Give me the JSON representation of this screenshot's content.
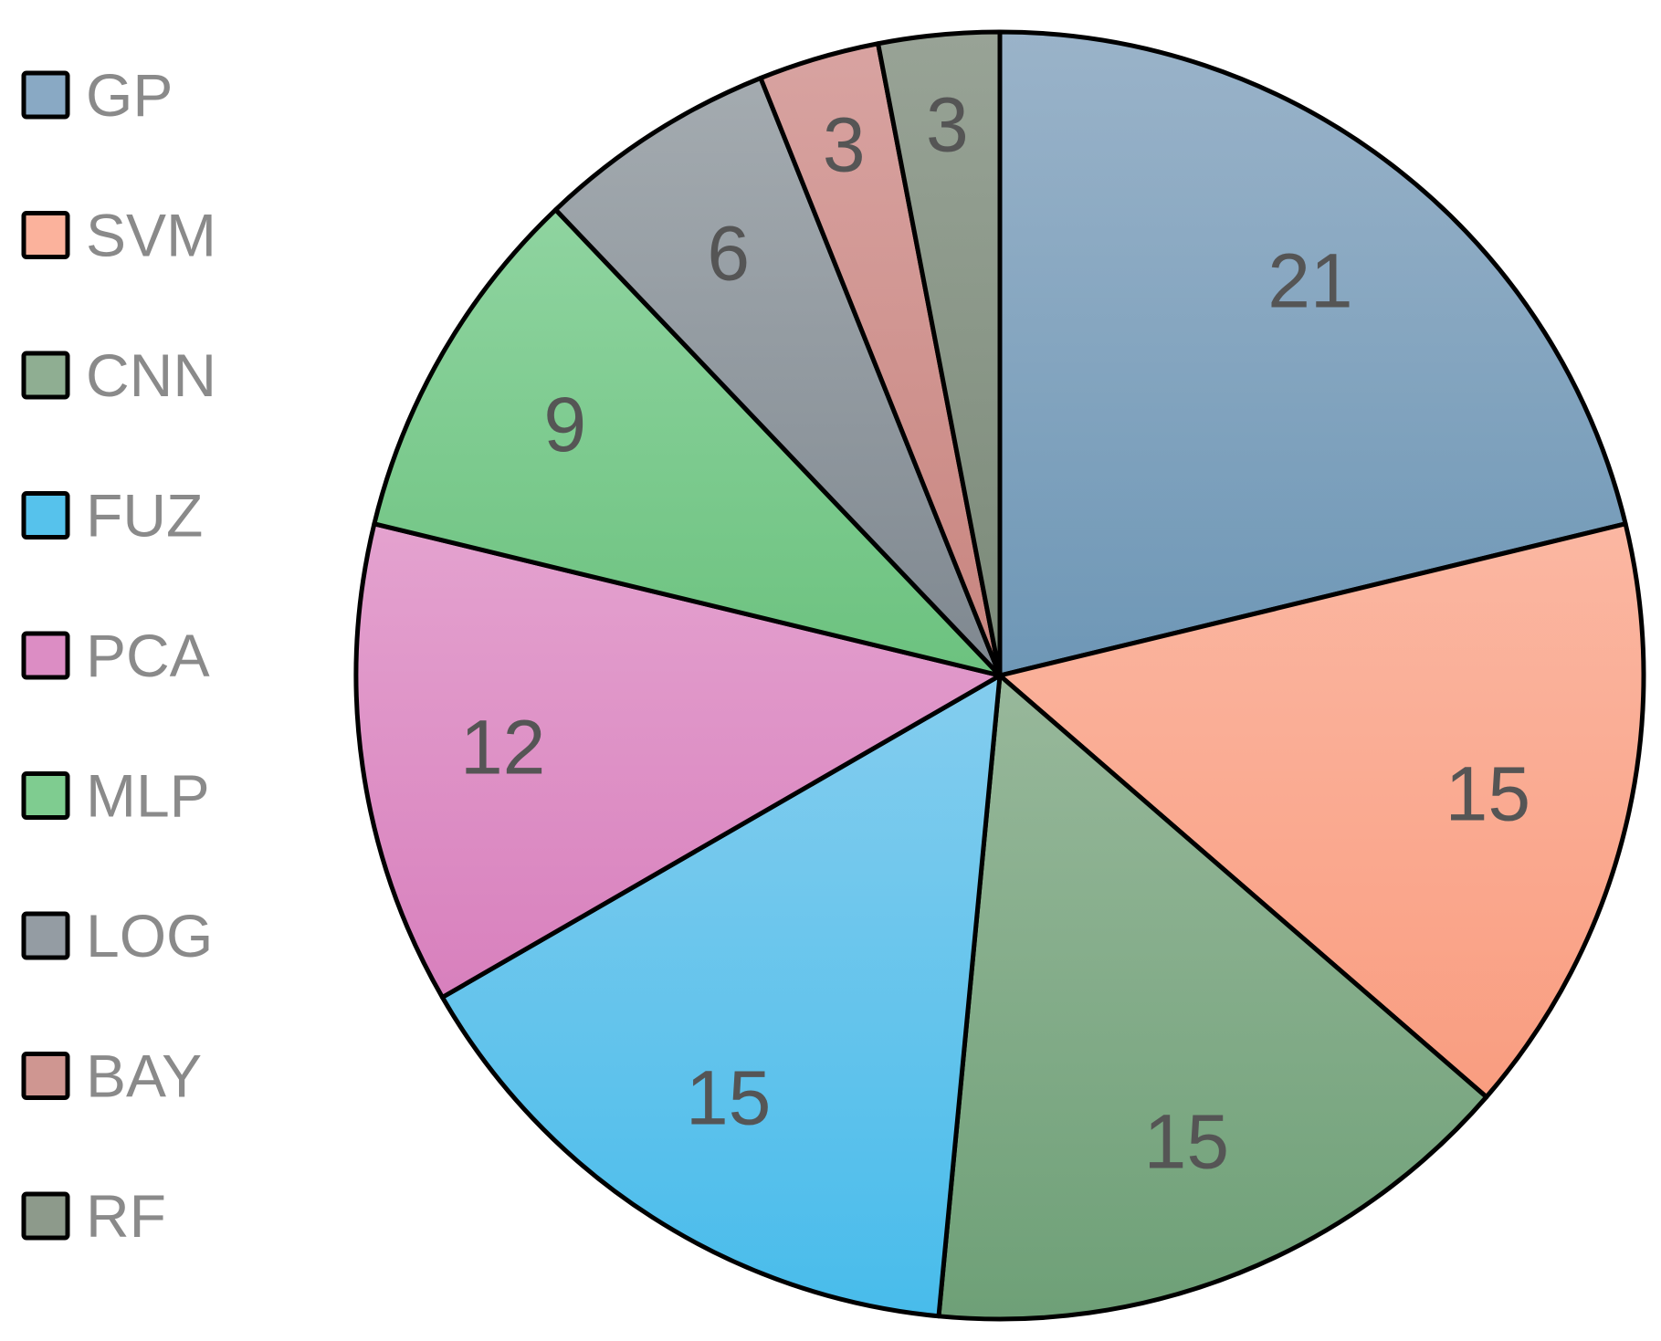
{
  "chart_data": {
    "type": "pie",
    "categories": [
      "GP",
      "SVM",
      "CNN",
      "FUZ",
      "PCA",
      "MLP",
      "LOG",
      "BAY",
      "RF"
    ],
    "values": [
      21,
      15,
      15,
      15,
      12,
      9,
      6,
      3,
      3
    ],
    "data_labels": [
      "21",
      "15",
      "15",
      "15",
      "12",
      "9",
      "6",
      "3",
      "3"
    ],
    "legend_position": "left",
    "start_angle_deg": 0,
    "direction": "clockwise",
    "colors": [
      {
        "top": "#9ab3c9",
        "bottom": "#6e97b6"
      },
      {
        "top": "#fbb7a2",
        "bottom": "#f99d80"
      },
      {
        "top": "#98b89b",
        "bottom": "#6ea077"
      },
      {
        "top": "#84cdee",
        "bottom": "#48bceb"
      },
      {
        "top": "#e4a2cf",
        "bottom": "#d880bd"
      },
      {
        "top": "#8fd4a0",
        "bottom": "#6cc27f"
      },
      {
        "top": "#a4abb0",
        "bottom": "#7f8890"
      },
      {
        "top": "#d8a3a1",
        "bottom": "#c8857f"
      },
      {
        "top": "#98a396",
        "bottom": "#7b8a79"
      }
    ],
    "legend_swatch_colors": [
      "#89a9c4",
      "#fbb29c",
      "#8fae92",
      "#56c2ec",
      "#dc8dc4",
      "#7fcc90",
      "#949ca3",
      "#cf9691",
      "#8d9a8b"
    ]
  }
}
